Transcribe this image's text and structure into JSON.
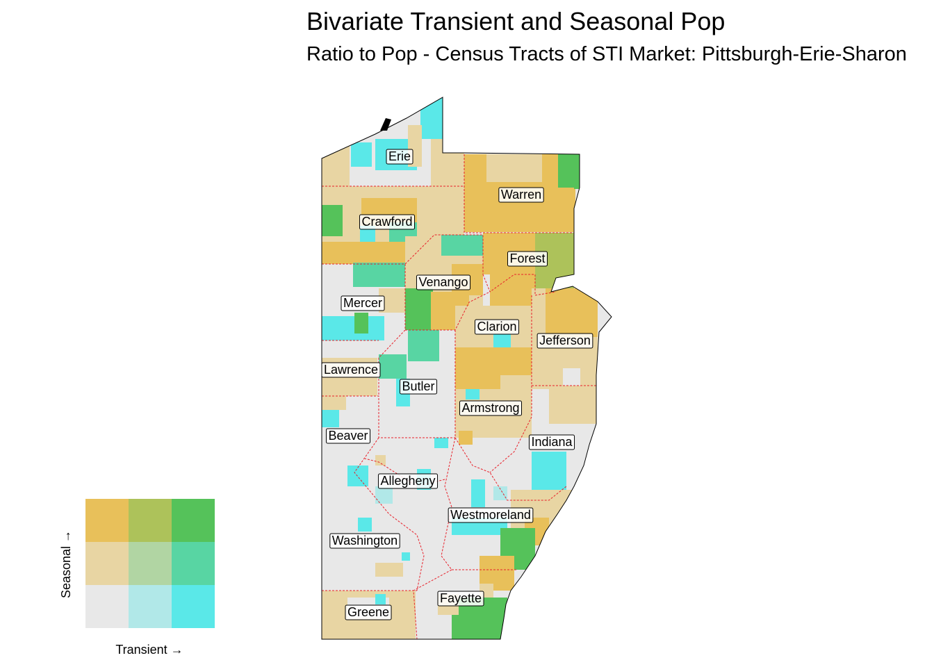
{
  "title": "Bivariate Transient and Seasonal Pop",
  "subtitle": "Ratio to Pop - Census Tracts of STI Market: Pittsburgh-Erie-Sharon",
  "counties": [
    "Erie",
    "Warren",
    "Crawford",
    "Forest",
    "Venango",
    "Mercer",
    "Clarion",
    "Jefferson",
    "Lawrence",
    "Butler",
    "Armstrong",
    "Beaver",
    "Indiana",
    "Allegheny",
    "Westmoreland",
    "Washington",
    "Fayette",
    "Greene"
  ],
  "legend": {
    "x_label": "Transient →",
    "y_label": "Seasonal →",
    "grid_colors": [
      [
        "#e8c05a",
        "#adc25a",
        "#55c25a"
      ],
      [
        "#e8d5a3",
        "#b1d5a3",
        "#58d5a3"
      ],
      [
        "#e8e8e8",
        "#b1e8e8",
        "#5ae8e8"
      ]
    ]
  },
  "colors": {
    "background": "#e8e8e8",
    "county_border": "#e8202a",
    "state_outline": "#000000"
  }
}
